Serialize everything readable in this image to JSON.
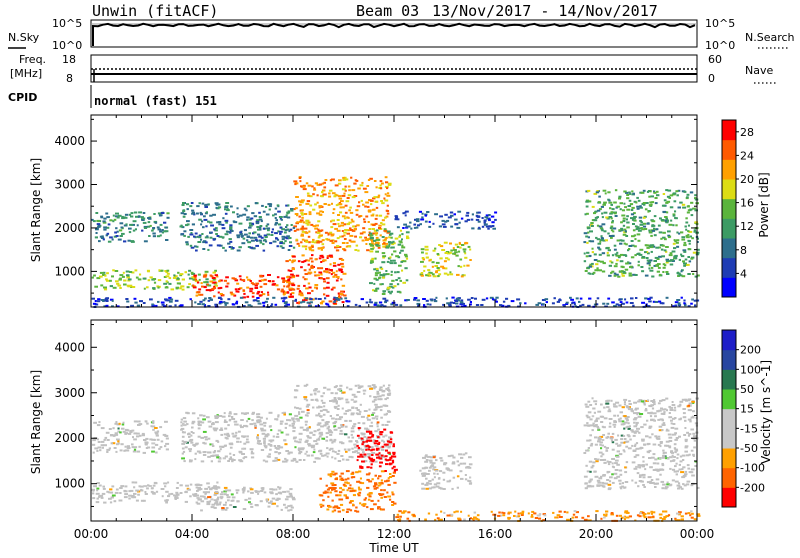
{
  "header": {
    "station": "Unwin (fitACF)",
    "beam": "Beam 03",
    "dates": "13/Nov/2017 - 14/Nov/2017"
  },
  "panels": {
    "nsky_label": "N.Sky",
    "nsearch_label": "N.Search",
    "freq_label": "Freq.",
    "freq_unit": "[MHz]",
    "nave_label": "Nave",
    "cpid_label": "CPID",
    "cpid_value": "normal (fast) 151",
    "nsky_ticks": [
      "10^5",
      "10^0"
    ],
    "nsearch_ticks": [
      "10^5",
      "10^0"
    ],
    "freq_ticks": [
      "18",
      "8"
    ],
    "nave_ticks": [
      "60",
      "0"
    ]
  },
  "colors": {
    "power_scale": [
      "#0000ff",
      "#1e3cb4",
      "#2d6e8c",
      "#3c9b64",
      "#5ab43c",
      "#dcdc14",
      "#ffa000",
      "#ff5a00",
      "#ff0000"
    ],
    "velocity_scale": [
      "#ff0000",
      "#ff6400",
      "#ffa000",
      "#c8c8c8",
      "#c8c8c8",
      "#50c832",
      "#287850",
      "#2846a0",
      "#1e1ec8"
    ],
    "ground_scatter": "#c0c0c0"
  },
  "chart_data": [
    {
      "type": "heatmap",
      "name": "power",
      "ylabel": "Slant Range [km]",
      "xlabel": "Time UT",
      "x_ticks": [
        "00:00",
        "04:00",
        "08:00",
        "12:00",
        "16:00",
        "20:00",
        "00:00"
      ],
      "xlim_hours": [
        0,
        24
      ],
      "y_ticks": [
        1000,
        2000,
        3000,
        4000
      ],
      "ylim_km": [
        180,
        4600
      ],
      "colorbar_label": "Power [dB]",
      "colorbar_ticks": [
        4,
        8,
        12,
        16,
        20,
        24,
        28
      ],
      "colorbar_range": [
        0,
        30
      ],
      "regions": [
        {
          "t0": 0.0,
          "t1": 5.0,
          "r0": 600,
          "r1": 1050,
          "value": 16
        },
        {
          "t0": 4.0,
          "t1": 8.0,
          "r0": 420,
          "r1": 950,
          "value": 26
        },
        {
          "t0": 7.5,
          "t1": 10.0,
          "r0": 250,
          "r1": 1400,
          "value": 25
        },
        {
          "t0": 8.0,
          "t1": 11.8,
          "r0": 1500,
          "r1": 3200,
          "value": 22
        },
        {
          "t0": 0.0,
          "t1": 3.0,
          "r0": 1700,
          "r1": 2400,
          "value": 10
        },
        {
          "t0": 3.5,
          "t1": 8.0,
          "r0": 1500,
          "r1": 2600,
          "value": 9
        },
        {
          "t0": 11.0,
          "t1": 12.5,
          "r0": 500,
          "r1": 2000,
          "value": 14
        },
        {
          "t0": 12.0,
          "t1": 16.0,
          "r0": 2000,
          "r1": 2400,
          "value": 6
        },
        {
          "t0": 13.0,
          "t1": 15.0,
          "r0": 900,
          "r1": 1700,
          "value": 18
        },
        {
          "t0": 19.5,
          "t1": 24.0,
          "r0": 900,
          "r1": 2900,
          "value": 13
        },
        {
          "t0": 0.0,
          "t1": 24.0,
          "r0": 200,
          "r1": 420,
          "value": 5
        }
      ]
    },
    {
      "type": "heatmap",
      "name": "velocity",
      "ylabel": "Slant Range [km]",
      "xlabel": "Time UT",
      "x_ticks": [
        "00:00",
        "04:00",
        "08:00",
        "12:00",
        "16:00",
        "20:00",
        "00:00"
      ],
      "xlim_hours": [
        0,
        24
      ],
      "y_ticks": [
        1000,
        2000,
        3000,
        4000
      ],
      "ylim_km": [
        180,
        4600
      ],
      "colorbar_label": "Velocity [m s^-1]",
      "colorbar_ticks": [
        200,
        100,
        50,
        15,
        -15,
        -50,
        -100,
        -200
      ],
      "regions": [
        {
          "t0": 0.0,
          "t1": 5.0,
          "r0": 600,
          "r1": 1050,
          "value": 0
        },
        {
          "t0": 4.0,
          "t1": 8.0,
          "r0": 420,
          "r1": 950,
          "value": 0
        },
        {
          "t0": 8.0,
          "t1": 11.8,
          "r0": 1500,
          "r1": 3200,
          "value": 0
        },
        {
          "t0": 0.0,
          "t1": 3.0,
          "r0": 1700,
          "r1": 2400,
          "value": 0
        },
        {
          "t0": 3.5,
          "t1": 8.0,
          "r0": 1500,
          "r1": 2600,
          "value": 0
        },
        {
          "t0": 9.0,
          "t1": 12.0,
          "r0": 400,
          "r1": 1300,
          "value": -60
        },
        {
          "t0": 10.5,
          "t1": 12.0,
          "r0": 1300,
          "r1": 2300,
          "value": -200
        },
        {
          "t0": 13.0,
          "t1": 15.0,
          "r0": 900,
          "r1": 1700,
          "value": 0
        },
        {
          "t0": 19.5,
          "t1": 24.0,
          "r0": 900,
          "r1": 2900,
          "value": 0
        },
        {
          "t0": 12.0,
          "t1": 24.0,
          "r0": 200,
          "r1": 420,
          "value": -40
        }
      ]
    }
  ]
}
